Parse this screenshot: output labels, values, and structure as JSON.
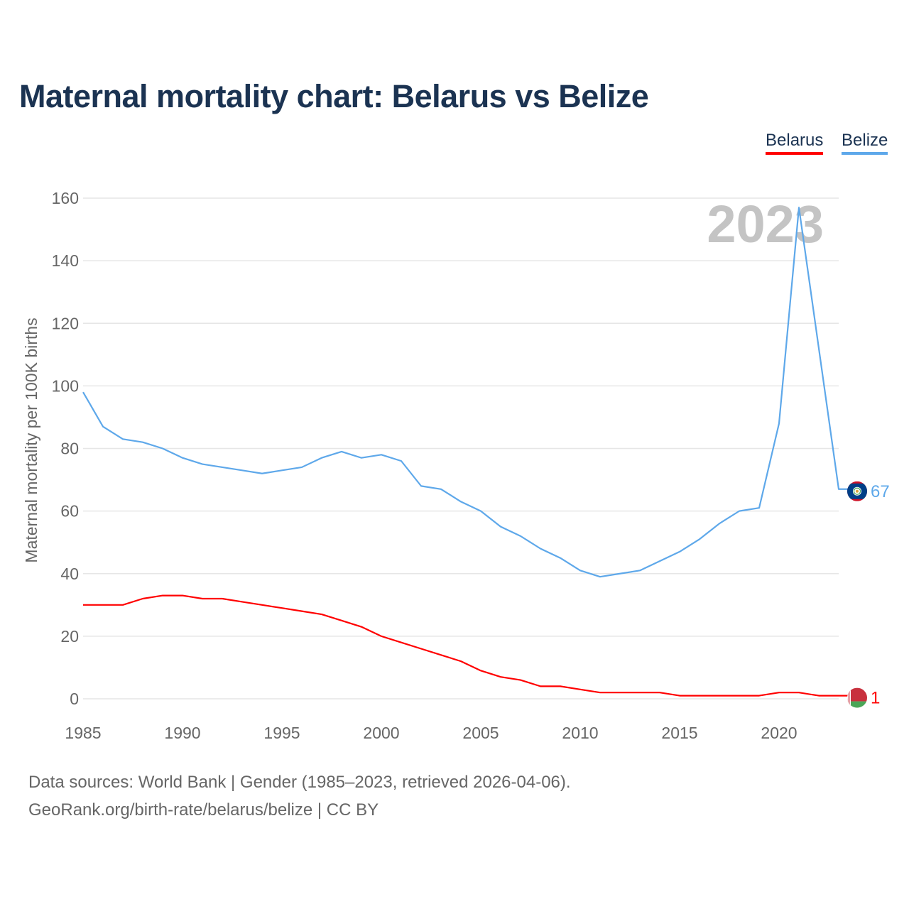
{
  "chart_data": {
    "type": "line",
    "title": "Maternal mortality chart: Belarus vs Belize",
    "ylabel": "Maternal mortality per 100K births",
    "xlabel": "",
    "xlim": [
      1985,
      2023
    ],
    "ylim": [
      0,
      160
    ],
    "x_ticks": [
      1985,
      1990,
      1995,
      2000,
      2005,
      2010,
      2015,
      2020
    ],
    "y_ticks": [
      0,
      20,
      40,
      60,
      80,
      100,
      120,
      140,
      160
    ],
    "grid": true,
    "legend_position": "top-right",
    "year_watermark": "2023",
    "x": [
      1985,
      1986,
      1987,
      1988,
      1989,
      1990,
      1991,
      1992,
      1993,
      1994,
      1995,
      1996,
      1997,
      1998,
      1999,
      2000,
      2001,
      2002,
      2003,
      2004,
      2005,
      2006,
      2007,
      2008,
      2009,
      2010,
      2011,
      2012,
      2013,
      2014,
      2015,
      2016,
      2017,
      2018,
      2019,
      2020,
      2021,
      2022,
      2023
    ],
    "series": [
      {
        "name": "Belarus",
        "color": "#ff0000",
        "end_label": "1",
        "values": [
          30,
          30,
          30,
          32,
          33,
          33,
          32,
          32,
          31,
          30,
          29,
          28,
          27,
          25,
          23,
          20,
          18,
          16,
          14,
          12,
          9,
          7,
          6,
          4,
          4,
          3,
          2,
          2,
          2,
          2,
          1,
          1,
          1,
          1,
          1,
          2,
          2,
          1,
          1
        ]
      },
      {
        "name": "Belize",
        "color": "#5ea8ea",
        "end_label": "67",
        "values": [
          98,
          87,
          83,
          82,
          80,
          77,
          75,
          74,
          73,
          72,
          73,
          74,
          77,
          79,
          77,
          78,
          76,
          68,
          67,
          63,
          60,
          55,
          52,
          48,
          45,
          41,
          39,
          40,
          41,
          44,
          47,
          51,
          56,
          60,
          61,
          88,
          157,
          112,
          67
        ]
      }
    ]
  },
  "footer": {
    "line1": "Data sources: World Bank | Gender (1985–2023, retrieved 2026-04-06).",
    "line2": "GeoRank.org/birth-rate/belarus/belize | CC BY"
  }
}
